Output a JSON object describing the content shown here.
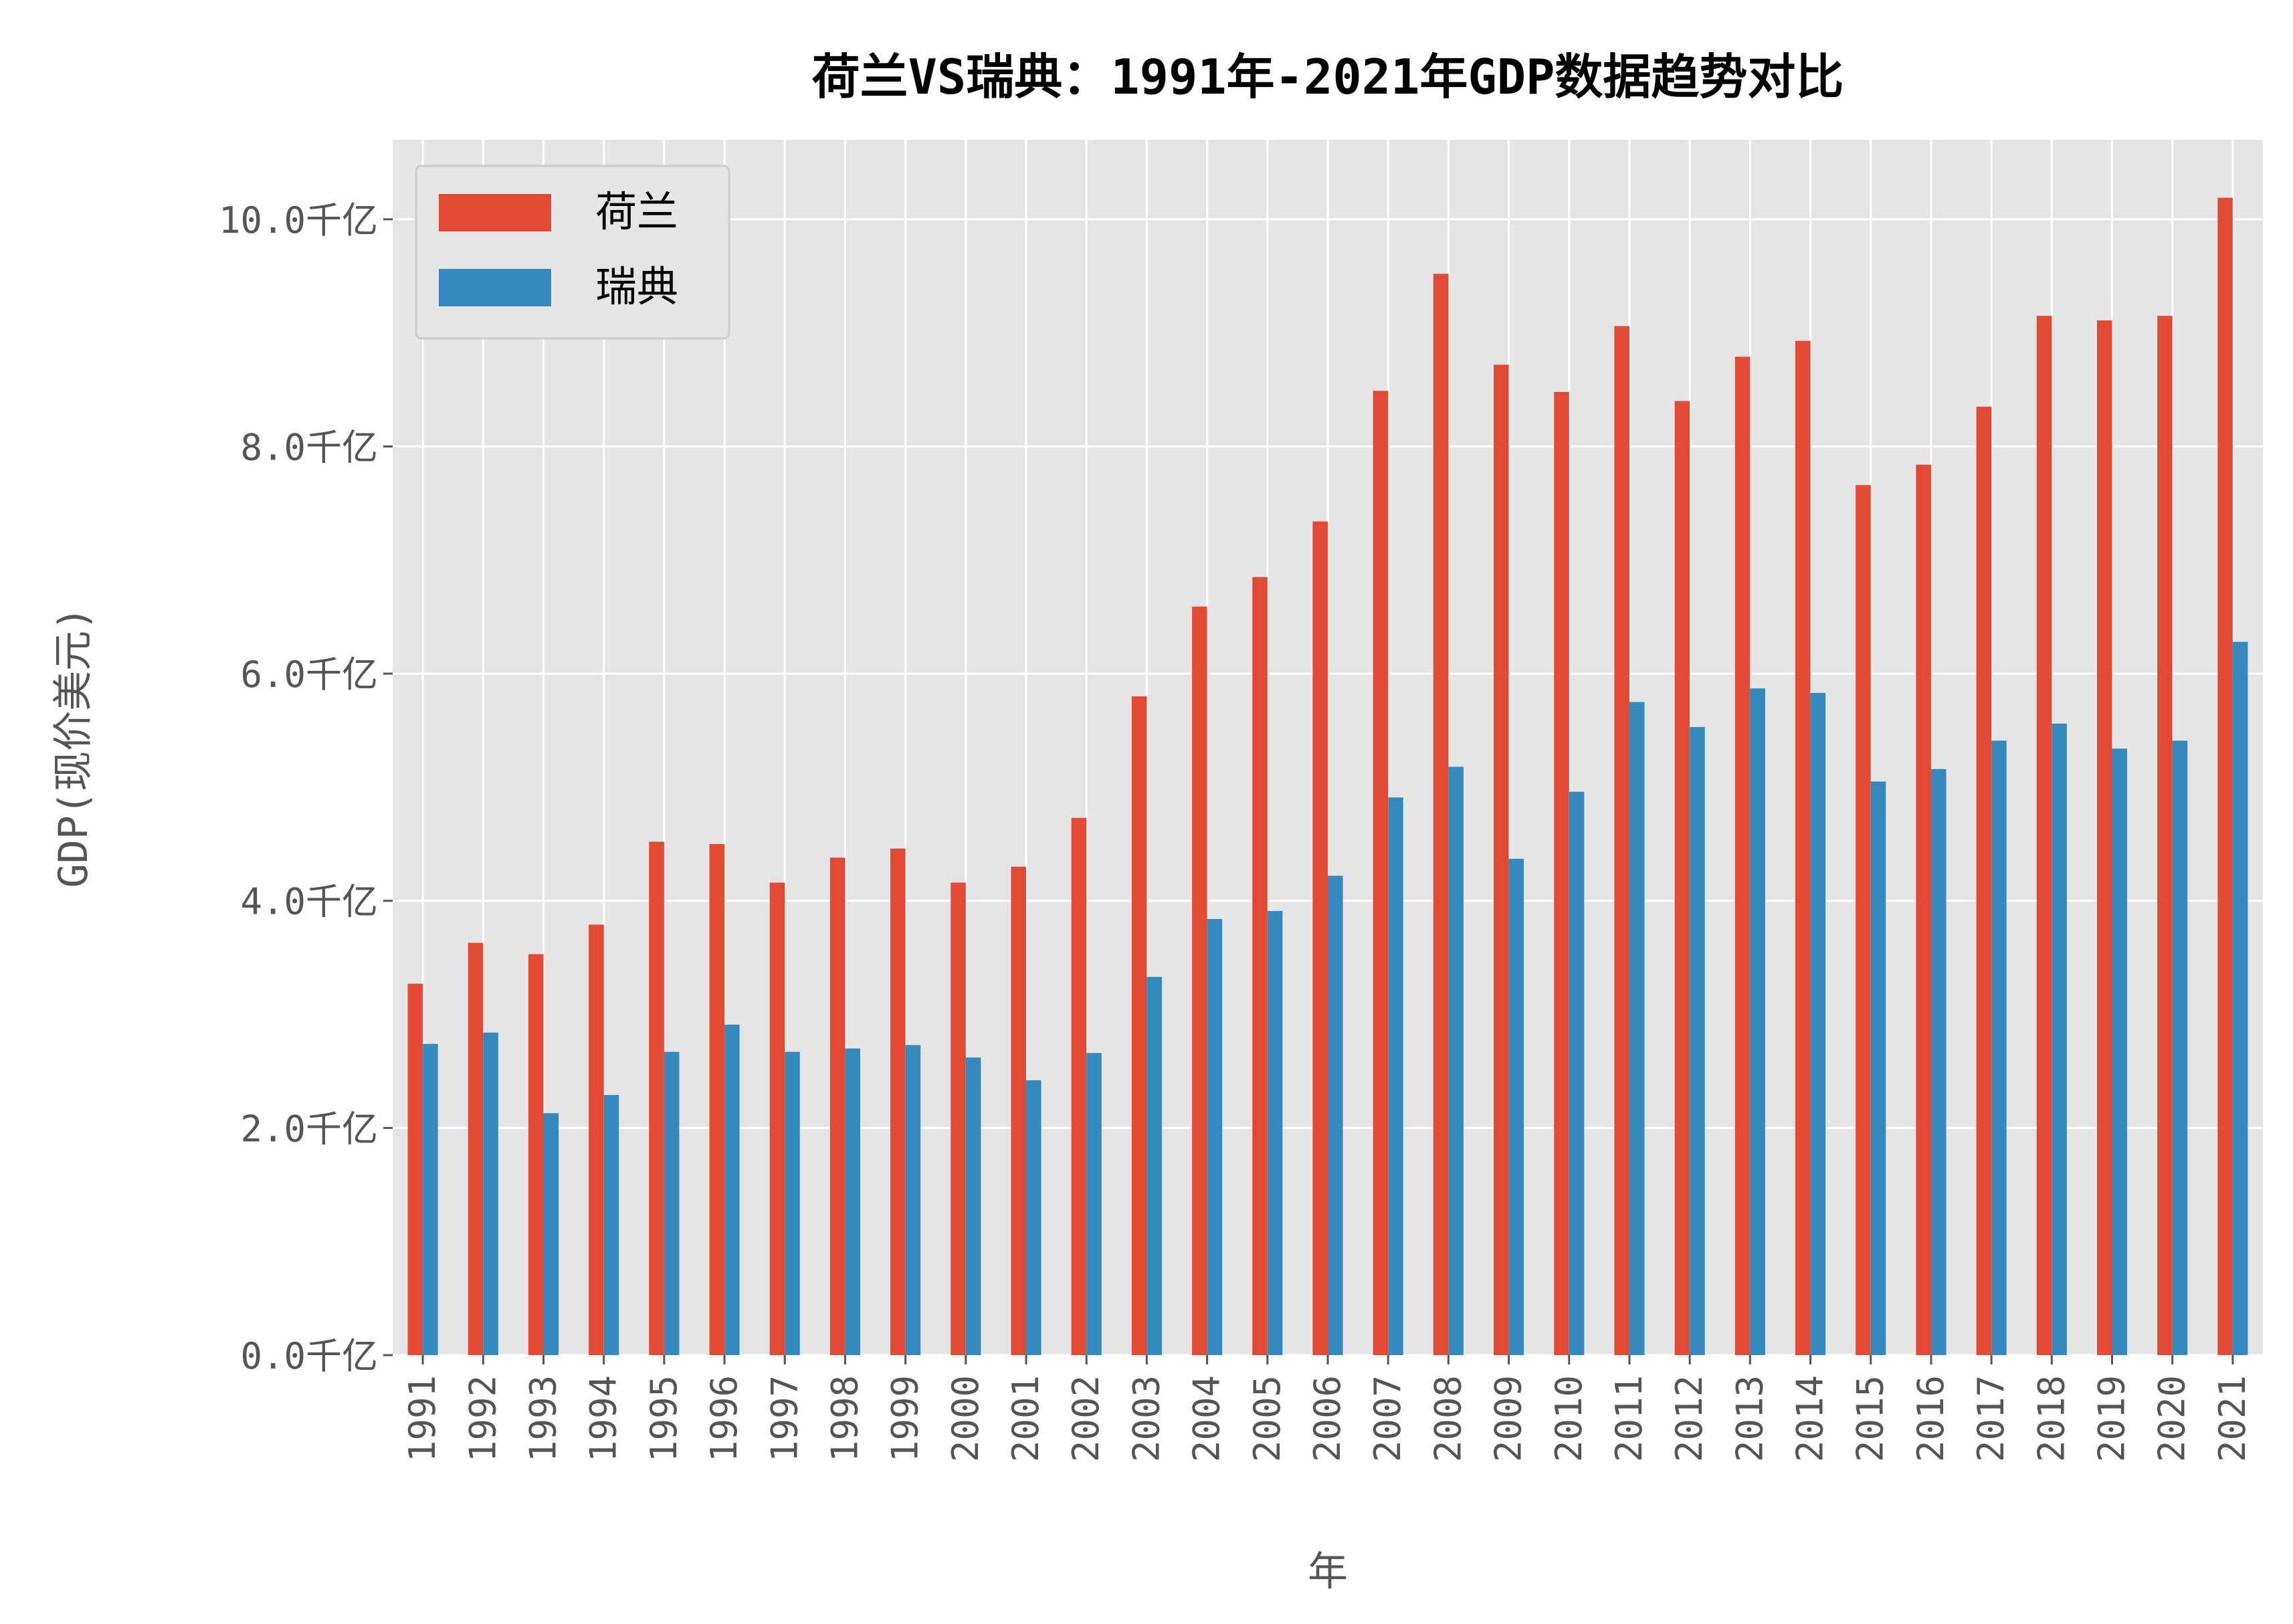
{
  "chart_data": {
    "type": "bar",
    "title": "荷兰VS瑞典：1991年-2021年GDP数据趋势对比",
    "xlabel": "年",
    "ylabel": "GDP(现价美元)",
    "ylim": [
      0,
      10.7
    ],
    "yticks": [
      0,
      2,
      4,
      6,
      8,
      10
    ],
    "ytick_labels": [
      "0.0千亿",
      "2.0千亿",
      "4.0千亿",
      "6.0千亿",
      "8.0千亿",
      "10.0千亿"
    ],
    "grid": true,
    "legend_position": "top-left",
    "categories": [
      "1991",
      "1992",
      "1993",
      "1994",
      "1995",
      "1996",
      "1997",
      "1998",
      "1999",
      "2000",
      "2001",
      "2002",
      "2003",
      "2004",
      "2005",
      "2006",
      "2007",
      "2008",
      "2009",
      "2010",
      "2011",
      "2012",
      "2013",
      "2014",
      "2015",
      "2016",
      "2017",
      "2018",
      "2019",
      "2020",
      "2021"
    ],
    "series": [
      {
        "name": "荷兰",
        "color": "#E24A33",
        "values": [
          3.27,
          3.63,
          3.53,
          3.79,
          4.52,
          4.5,
          4.16,
          4.38,
          4.46,
          4.16,
          4.3,
          4.73,
          5.8,
          6.59,
          6.85,
          7.34,
          8.49,
          9.52,
          8.72,
          8.48,
          9.06,
          8.4,
          8.79,
          8.93,
          7.66,
          7.84,
          8.35,
          9.15,
          9.11,
          9.15,
          10.19
        ]
      },
      {
        "name": "瑞典",
        "color": "#348ABD",
        "values": [
          2.74,
          2.84,
          2.13,
          2.29,
          2.67,
          2.91,
          2.67,
          2.7,
          2.73,
          2.62,
          2.42,
          2.66,
          3.33,
          3.84,
          3.91,
          4.22,
          4.91,
          5.18,
          4.37,
          4.96,
          5.75,
          5.53,
          5.87,
          5.83,
          5.05,
          5.16,
          5.41,
          5.56,
          5.34,
          5.41,
          6.28
        ]
      }
    ],
    "background_color": "#E5E5E5"
  }
}
